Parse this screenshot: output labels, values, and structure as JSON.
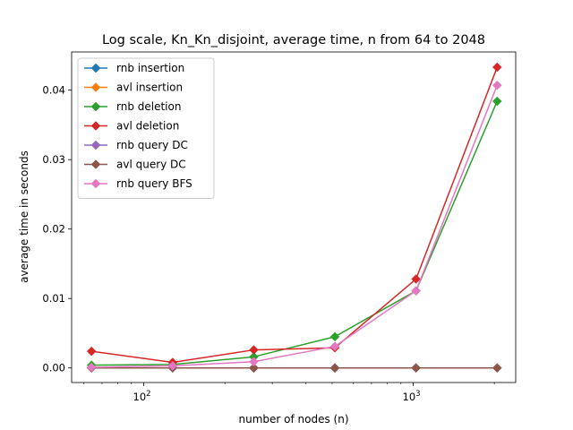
{
  "chart_data": {
    "type": "line",
    "title": "Log scale, Kn_Kn_disjoint, average time, n from 64 to 2048",
    "xlabel": "number of nodes (n)",
    "ylabel": "average time in seconds",
    "xscale": "log",
    "xlim": [
      54,
      2400
    ],
    "ylim": [
      -0.0021,
      0.0455
    ],
    "x": [
      64,
      128,
      256,
      512,
      1024,
      2048
    ],
    "x_ticks": [
      {
        "value": 100,
        "base": "10",
        "exp": "2"
      },
      {
        "value": 1000,
        "base": "10",
        "exp": "3"
      }
    ],
    "y_ticks": [
      {
        "value": 0.0,
        "label": "0.00"
      },
      {
        "value": 0.01,
        "label": "0.01"
      },
      {
        "value": 0.02,
        "label": "0.02"
      },
      {
        "value": 0.03,
        "label": "0.03"
      },
      {
        "value": 0.04,
        "label": "0.04"
      }
    ],
    "grid": false,
    "legend_position": "top-left",
    "marker": "diamond",
    "series": [
      {
        "name": "rnb insertion",
        "color": "#1f77b4",
        "values": [
          0.0,
          0.0,
          0.0,
          0.0,
          0.0,
          0.0
        ]
      },
      {
        "name": "avl insertion",
        "color": "#ff7f0e",
        "values": [
          0.0,
          0.0,
          0.0,
          0.0,
          0.0,
          0.0
        ]
      },
      {
        "name": "rnb deletion",
        "color": "#2ca02c",
        "values": [
          0.0004,
          0.0005,
          0.0016,
          0.0045,
          0.0111,
          0.0384
        ]
      },
      {
        "name": "avl deletion",
        "color": "#d62728",
        "values": [
          0.0024,
          0.0008,
          0.0026,
          0.0029,
          0.0128,
          0.0433
        ]
      },
      {
        "name": "rnb query DC",
        "color": "#9467bd",
        "values": [
          0.0,
          0.0,
          0.0,
          0.0,
          0.0,
          0.0
        ]
      },
      {
        "name": "avl query DC",
        "color": "#8c564b",
        "values": [
          0.0,
          0.0,
          0.0,
          0.0,
          0.0,
          0.0
        ]
      },
      {
        "name": "rnb query BFS",
        "color": "#e377c2",
        "values": [
          0.0001,
          0.0003,
          0.0009,
          0.0031,
          0.0111,
          0.0407
        ]
      }
    ]
  }
}
